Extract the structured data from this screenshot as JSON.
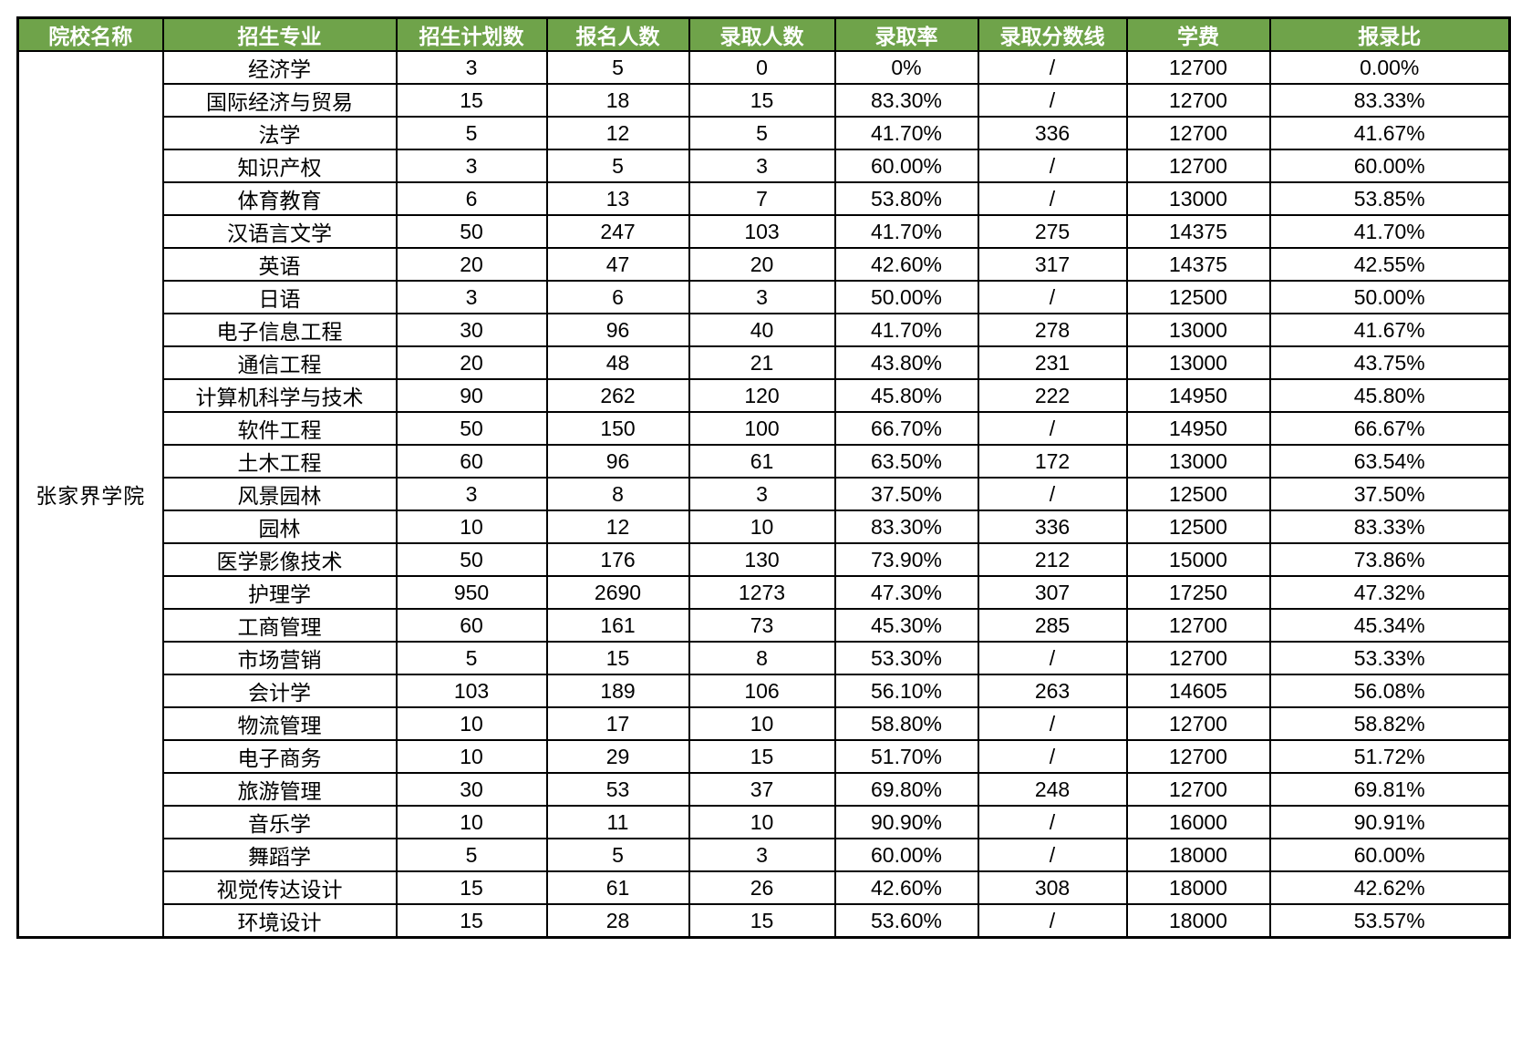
{
  "table": {
    "accent_color": "#6fa34a",
    "header_text_color": "#ffffff",
    "border_color": "#000000",
    "headers": [
      "院校名称",
      "招生专业",
      "招生计划数",
      "报名人数",
      "录取人数",
      "录取率",
      "录取分数线",
      "学费",
      "报录比"
    ],
    "college": "张家界学院",
    "rows": [
      [
        "经济学",
        "3",
        "5",
        "0",
        "0%",
        "/",
        "12700",
        "0.00%"
      ],
      [
        "国际经济与贸易",
        "15",
        "18",
        "15",
        "83.30%",
        "/",
        "12700",
        "83.33%"
      ],
      [
        "法学",
        "5",
        "12",
        "5",
        "41.70%",
        "336",
        "12700",
        "41.67%"
      ],
      [
        "知识产权",
        "3",
        "5",
        "3",
        "60.00%",
        "/",
        "12700",
        "60.00%"
      ],
      [
        "体育教育",
        "6",
        "13",
        "7",
        "53.80%",
        "/",
        "13000",
        "53.85%"
      ],
      [
        "汉语言文学",
        "50",
        "247",
        "103",
        "41.70%",
        "275",
        "14375",
        "41.70%"
      ],
      [
        "英语",
        "20",
        "47",
        "20",
        "42.60%",
        "317",
        "14375",
        "42.55%"
      ],
      [
        "日语",
        "3",
        "6",
        "3",
        "50.00%",
        "/",
        "12500",
        "50.00%"
      ],
      [
        "电子信息工程",
        "30",
        "96",
        "40",
        "41.70%",
        "278",
        "13000",
        "41.67%"
      ],
      [
        "通信工程",
        "20",
        "48",
        "21",
        "43.80%",
        "231",
        "13000",
        "43.75%"
      ],
      [
        "计算机科学与技术",
        "90",
        "262",
        "120",
        "45.80%",
        "222",
        "14950",
        "45.80%"
      ],
      [
        "软件工程",
        "50",
        "150",
        "100",
        "66.70%",
        "/",
        "14950",
        "66.67%"
      ],
      [
        "土木工程",
        "60",
        "96",
        "61",
        "63.50%",
        "172",
        "13000",
        "63.54%"
      ],
      [
        "风景园林",
        "3",
        "8",
        "3",
        "37.50%",
        "/",
        "12500",
        "37.50%"
      ],
      [
        "园林",
        "10",
        "12",
        "10",
        "83.30%",
        "336",
        "12500",
        "83.33%"
      ],
      [
        "医学影像技术",
        "50",
        "176",
        "130",
        "73.90%",
        "212",
        "15000",
        "73.86%"
      ],
      [
        "护理学",
        "950",
        "2690",
        "1273",
        "47.30%",
        "307",
        "17250",
        "47.32%"
      ],
      [
        "工商管理",
        "60",
        "161",
        "73",
        "45.30%",
        "285",
        "12700",
        "45.34%"
      ],
      [
        "市场营销",
        "5",
        "15",
        "8",
        "53.30%",
        "/",
        "12700",
        "53.33%"
      ],
      [
        "会计学",
        "103",
        "189",
        "106",
        "56.10%",
        "263",
        "14605",
        "56.08%"
      ],
      [
        "物流管理",
        "10",
        "17",
        "10",
        "58.80%",
        "/",
        "12700",
        "58.82%"
      ],
      [
        "电子商务",
        "10",
        "29",
        "15",
        "51.70%",
        "/",
        "12700",
        "51.72%"
      ],
      [
        "旅游管理",
        "30",
        "53",
        "37",
        "69.80%",
        "248",
        "12700",
        "69.81%"
      ],
      [
        "音乐学",
        "10",
        "11",
        "10",
        "90.90%",
        "/",
        "16000",
        "90.91%"
      ],
      [
        "舞蹈学",
        "5",
        "5",
        "3",
        "60.00%",
        "/",
        "18000",
        "60.00%"
      ],
      [
        "视觉传达设计",
        "15",
        "61",
        "26",
        "42.60%",
        "308",
        "18000",
        "42.62%"
      ],
      [
        "环境设计",
        "15",
        "28",
        "15",
        "53.60%",
        "/",
        "18000",
        "53.57%"
      ]
    ]
  }
}
